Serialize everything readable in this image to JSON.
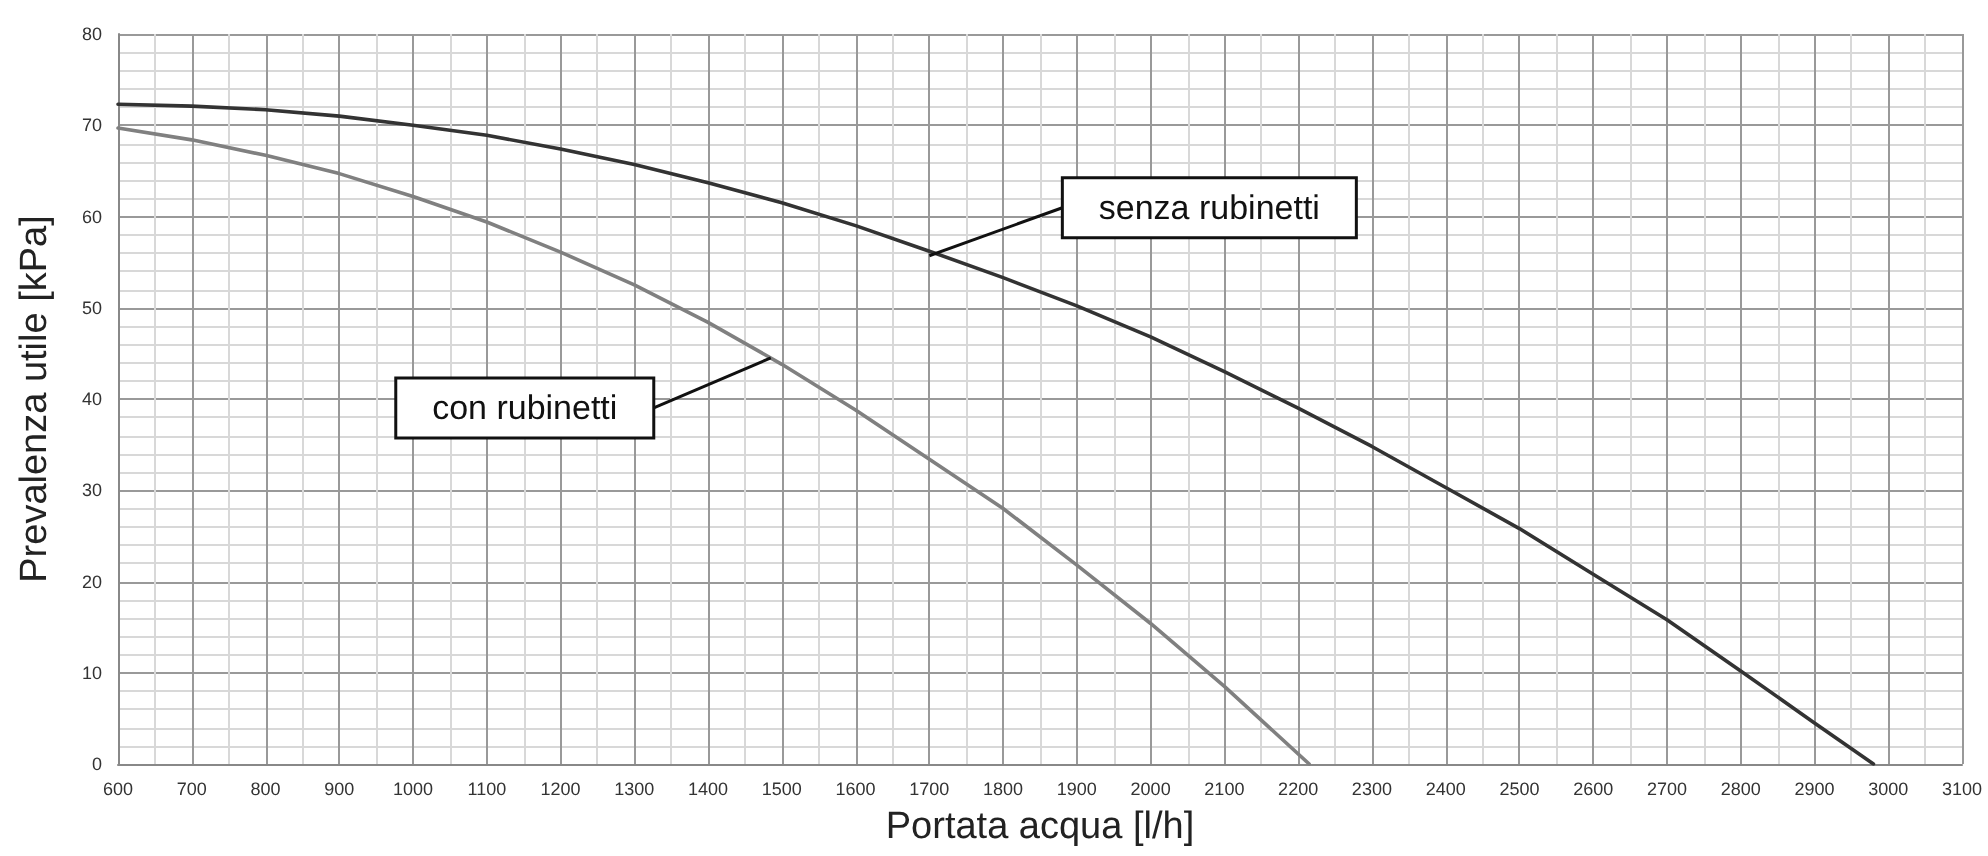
{
  "chart_data": {
    "type": "line",
    "xlabel": "Portata acqua [l/h]",
    "ylabel": "Prevalenza utile [kPa]",
    "xlim": [
      600,
      3100
    ],
    "ylim": [
      0,
      80
    ],
    "xticks": [
      600,
      700,
      800,
      900,
      1000,
      1100,
      1200,
      1300,
      1400,
      1500,
      1600,
      1700,
      1800,
      1900,
      2000,
      2100,
      2200,
      2300,
      2400,
      2500,
      2600,
      2700,
      2800,
      2900,
      3000,
      3100
    ],
    "yticks": [
      0,
      10,
      20,
      30,
      40,
      50,
      60,
      70,
      80
    ],
    "grid": true,
    "marker": "none",
    "line_style": "solid",
    "series": [
      {
        "color": "#333333",
        "x": [
          600,
          700,
          800,
          900,
          1000,
          1100,
          1200,
          1300,
          1400,
          1500,
          1600,
          1700,
          1800,
          1900,
          2000,
          2100,
          2200,
          2300,
          2400,
          2500,
          2600,
          2700,
          2800,
          2900,
          2980
        ],
        "values": [
          72.3,
          72.1,
          71.7,
          71,
          70,
          68.9,
          67.4,
          65.7,
          63.7,
          61.5,
          59,
          56.2,
          53.3,
          50.2,
          46.8,
          43,
          39,
          34.8,
          30.3,
          25.8,
          20.8,
          15.8,
          10.2,
          4.5,
          0
        ]
      },
      {
        "color": "#808080",
        "x": [
          600,
          700,
          800,
          900,
          1000,
          1100,
          1200,
          1300,
          1400,
          1500,
          1600,
          1700,
          1800,
          1900,
          2000,
          2100,
          2215
        ],
        "values": [
          69.7,
          68.4,
          66.7,
          64.7,
          62.2,
          59.4,
          56.1,
          52.5,
          48.4,
          43.8,
          38.8,
          33.4,
          28,
          21.8,
          15.4,
          8.5,
          0
        ]
      }
    ],
    "annotations": [
      {
        "text": "senza rubinetti",
        "x": 1700,
        "y": 55.7
      },
      {
        "text": "con rubinetti",
        "x": 1485,
        "y": 44.5
      }
    ]
  }
}
